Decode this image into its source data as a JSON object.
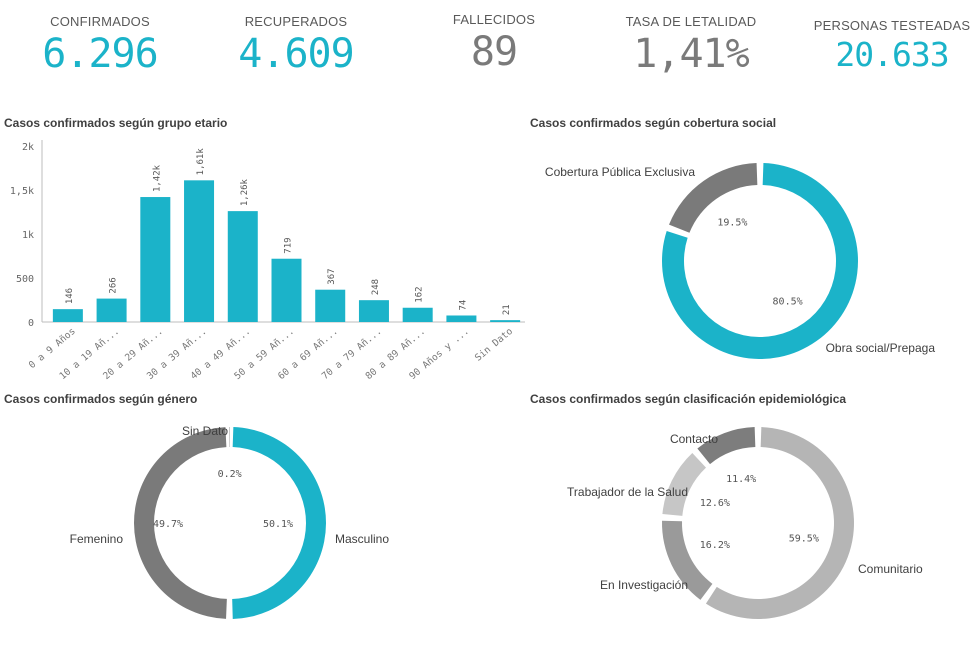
{
  "kpis": {
    "confirmados": {
      "label": "CONFIRMADOS",
      "value": "6.296",
      "color": "#1bb3c9"
    },
    "recuperados": {
      "label": "RECUPERADOS",
      "value": "4.609",
      "color": "#1bb3c9"
    },
    "fallecidos": {
      "label": "FALLECIDOS",
      "value": "89",
      "color": "#7a7a7a"
    },
    "letalidad": {
      "label": "TASA DE LETALIDAD",
      "value": "1,41%",
      "color": "#7a7a7a"
    },
    "testeadas": {
      "label": "PERSONAS TESTEADAS",
      "value": "20.633",
      "color": "#1bb3c9"
    }
  },
  "chart_data": [
    {
      "type": "bar",
      "title": "Casos confirmados según grupo etario",
      "categories": [
        "0 a 9 Años",
        "10 a 19 Añ...",
        "20 a 29 Añ...",
        "30 a 39 Añ...",
        "40 a 49 Añ...",
        "50 a 59 Añ...",
        "60 a 69 Añ...",
        "70 a 79 Añ...",
        "80 a 89 Añ...",
        "90 Años y ...",
        "Sin Dato"
      ],
      "values": [
        146,
        266,
        1420,
        1610,
        1260,
        719,
        367,
        248,
        162,
        74,
        21
      ],
      "value_labels": [
        "146",
        "266",
        "1,42k",
        "1,61k",
        "1,26k",
        "719",
        "367",
        "248",
        "162",
        "74",
        "21"
      ],
      "yticks": [
        "0",
        "500",
        "1k",
        "1,5k",
        "2k"
      ],
      "ylim": [
        0,
        2000
      ],
      "color": "#1bb3c9"
    },
    {
      "type": "pie",
      "title": "Casos confirmados según cobertura social",
      "slices": [
        {
          "name": "Obra social/Prepaga",
          "value": 80.5,
          "label": "80.5%",
          "color": "#1bb3c9"
        },
        {
          "name": "Cobertura Pública Exclusiva",
          "value": 19.5,
          "label": "19.5%",
          "color": "#7a7a7a"
        }
      ]
    },
    {
      "type": "pie",
      "title": "Casos confirmados según género",
      "slices": [
        {
          "name": "Masculino",
          "value": 50.1,
          "label": "50.1%",
          "color": "#1bb3c9"
        },
        {
          "name": "Femenino",
          "value": 49.7,
          "label": "49.7%",
          "color": "#7a7a7a"
        },
        {
          "name": "Sin Dato",
          "value": 0.2,
          "label": "0.2%",
          "color": "#7a7a7a"
        }
      ]
    },
    {
      "type": "pie",
      "title": "Casos confirmados según clasificación epidemiológica",
      "slices": [
        {
          "name": "Comunitario",
          "value": 59.5,
          "label": "59.5%",
          "color": "#b5b5b5"
        },
        {
          "name": "En Investigación",
          "value": 16.2,
          "label": "16.2%",
          "color": "#9a9a9a"
        },
        {
          "name": "Trabajador de la Salud",
          "value": 12.6,
          "label": "12.6%",
          "color": "#c6c6c6"
        },
        {
          "name": "Contacto",
          "value": 11.4,
          "label": "11.4%",
          "color": "#7d7d7d"
        }
      ]
    }
  ]
}
